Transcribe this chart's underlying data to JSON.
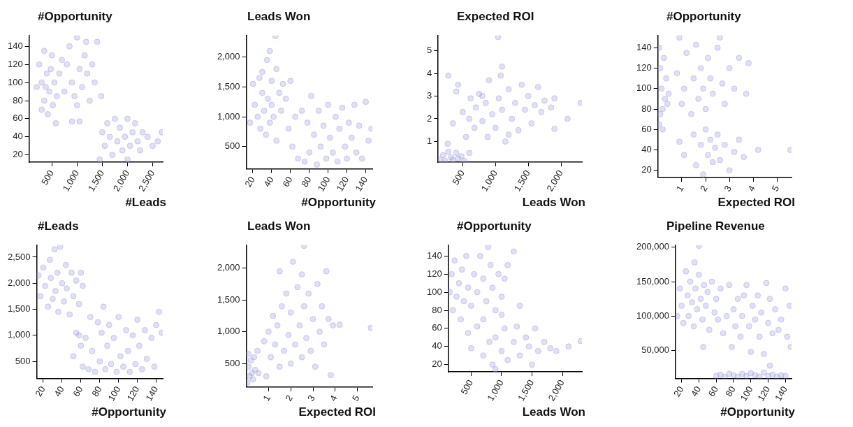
{
  "chart_data": [
    {
      "type": "scatter",
      "ylabel": "#Opportunity",
      "xlabel": "#Leads",
      "color": "#9999dd",
      "marker": "circle",
      "xlim": [
        50,
        2700
      ],
      "ylim": [
        12,
        152
      ],
      "xticks": [
        500,
        {
          "value": 1000,
          "label": "1,000"
        },
        {
          "value": 1500,
          "label": "1,500"
        },
        {
          "value": 2000,
          "label": "2,000"
        },
        {
          "value": 2500,
          "label": "2,500"
        }
      ],
      "yticks": [
        20,
        40,
        60,
        80,
        100,
        120,
        140
      ],
      "x": [
        250,
        300,
        350,
        400,
        450,
        500,
        300,
        420,
        550,
        600,
        350,
        480,
        200,
        380,
        520,
        650,
        700,
        800,
        850,
        900,
        950,
        1000,
        1050,
        1100,
        1150,
        1200,
        1250,
        1300,
        1350,
        900,
        1050,
        750,
        1000,
        1180,
        1400,
        1480,
        1500,
        1550,
        1600,
        1650,
        1700,
        1750,
        1800,
        1850,
        1900,
        1950,
        2000,
        2050,
        2100,
        2150,
        2200,
        2250,
        2300,
        2400,
        2500,
        2600,
        2680,
        1450,
        2000,
        580
      ],
      "values": [
        120,
        100,
        80,
        110,
        90,
        130,
        70,
        65,
        100,
        85,
        135,
        115,
        95,
        95,
        75,
        110,
        125,
        120,
        140,
        100,
        85,
        150,
        115,
        95,
        130,
        110,
        80,
        120,
        100,
        57,
        57,
        90,
        75,
        145,
        145,
        85,
        45,
        30,
        55,
        40,
        20,
        60,
        35,
        50,
        25,
        40,
        60,
        30,
        45,
        55,
        35,
        25,
        45,
        40,
        30,
        35,
        45,
        15,
        15,
        55
      ]
    },
    {
      "type": "scatter",
      "ylabel": "Leads Won",
      "xlabel": "#Opportunity",
      "color": "#9999dd",
      "marker": "circle",
      "xlim": [
        13,
        147
      ],
      "ylim": [
        130,
        2360
      ],
      "xticks": [
        20,
        40,
        60,
        80,
        100,
        120,
        140
      ],
      "yticks": [
        500,
        {
          "value": 1000,
          "label": "1,000"
        },
        {
          "value": 1500,
          "label": "1,500"
        },
        {
          "value": 2000,
          "label": "2,000"
        }
      ],
      "x": [
        17,
        20,
        22,
        25,
        27,
        28,
        30,
        30,
        32,
        34,
        35,
        36,
        38,
        38,
        40,
        40,
        42,
        44,
        45,
        45,
        48,
        50,
        52,
        55,
        58,
        60,
        62,
        65,
        68,
        72,
        75,
        78,
        80,
        82,
        85,
        88,
        90,
        92,
        95,
        98,
        100,
        102,
        105,
        108,
        110,
        112,
        115,
        118,
        120,
        122,
        125,
        128,
        130,
        133,
        136,
        140,
        143,
        146
      ],
      "values": [
        900,
        1550,
        1200,
        1000,
        1650,
        800,
        1400,
        1750,
        1100,
        700,
        1950,
        1300,
        900,
        2100,
        1600,
        1200,
        1000,
        2350,
        1800,
        600,
        1400,
        1100,
        1550,
        1300,
        800,
        1600,
        500,
        1000,
        300,
        1100,
        250,
        900,
        400,
        1350,
        700,
        200,
        1100,
        500,
        850,
        300,
        1200,
        650,
        400,
        1000,
        250,
        800,
        1150,
        500,
        300,
        900,
        650,
        1200,
        400,
        850,
        300,
        1250,
        600,
        800
      ]
    },
    {
      "type": "scatter",
      "ylabel": "Expected ROI",
      "xlabel": "Leads Won",
      "color": "#9999dd",
      "marker": "circle",
      "xlim": [
        125,
        2320
      ],
      "ylim": [
        0.09,
        5.67
      ],
      "xticks": [
        500,
        {
          "value": 1000,
          "label": "1,000"
        },
        {
          "value": 1500,
          "label": "1,500"
        },
        {
          "value": 2000,
          "label": "2,000"
        }
      ],
      "yticks": [
        1,
        2,
        3,
        4,
        5
      ],
      "x": [
        150,
        200,
        230,
        280,
        320,
        350,
        400,
        430,
        480,
        520,
        270,
        600,
        350,
        400,
        430,
        500,
        550,
        600,
        620,
        680,
        700,
        750,
        800,
        850,
        880,
        900,
        950,
        1000,
        1050,
        1080,
        1100,
        1150,
        1200,
        1250,
        1300,
        1350,
        1400,
        1450,
        1500,
        1550,
        1600,
        1650,
        1700,
        1750,
        1850,
        1900,
        1200,
        800,
        280,
        1040,
        1100,
        2300,
        2100,
        1900
      ],
      "values": [
        0.2,
        0.4,
        0.15,
        0.55,
        0.3,
        0.2,
        0.5,
        0.25,
        0.35,
        0.15,
        0.9,
        0.5,
        1.8,
        3.2,
        3.5,
        2.3,
        1.2,
        2.0,
        2.9,
        1.6,
        2.5,
        3.1,
        1.9,
        2.7,
        1.2,
        3.7,
        2.2,
        1.6,
        2.9,
        3.9,
        2.4,
        1.0,
        3.3,
        2.0,
        2.7,
        1.5,
        3.5,
        2.4,
        3.0,
        1.8,
        2.6,
        3.4,
        2.3,
        2.8,
        2.5,
        2.9,
        1.3,
        3.0,
        3.9,
        5.6,
        4.3,
        2.7,
        2.0,
        1.55
      ]
    },
    {
      "type": "scatter",
      "ylabel": "#Opportunity",
      "xlabel": "Expected ROI",
      "color": "#9999dd",
      "marker": "circle",
      "xlim": [
        0,
        5.6
      ],
      "ylim": [
        13,
        152
      ],
      "xticks": [
        1,
        2,
        3,
        4,
        5
      ],
      "yticks": [
        20,
        40,
        60,
        80,
        100,
        120,
        140
      ],
      "x": [
        0.05,
        0.1,
        0.15,
        0.2,
        0.05,
        0.25,
        0.3,
        0.1,
        0.35,
        0.45,
        0.2,
        0.4,
        0.9,
        0.8,
        1.0,
        1.1,
        1.2,
        1.4,
        1.5,
        1.6,
        1.7,
        1.8,
        1.9,
        2.0,
        2.1,
        2.2,
        2.3,
        2.5,
        2.6,
        2.7,
        2.8,
        3.0,
        3.2,
        3.4,
        3.7,
        3.8,
        0.9,
        1.1,
        1.5,
        1.6,
        1.8,
        1.9,
        2.0,
        2.1,
        2.2,
        2.3,
        2.4,
        2.5,
        2.6,
        2.8,
        3.0,
        3.2,
        3.4,
        3.6,
        4.2,
        5.55
      ],
      "values": [
        140,
        120,
        100,
        80,
        65,
        130,
        90,
        75,
        110,
        95,
        60,
        85,
        150,
        115,
        85,
        100,
        135,
        75,
        110,
        143,
        90,
        120,
        100,
        80,
        130,
        110,
        95,
        140,
        150,
        105,
        85,
        120,
        100,
        130,
        95,
        125,
        48,
        35,
        55,
        25,
        45,
        16,
        60,
        35,
        50,
        28,
        42,
        55,
        30,
        45,
        20,
        38,
        50,
        33,
        40,
        40
      ]
    },
    {
      "type": "scatter",
      "ylabel": "#Leads",
      "xlabel": "#Opportunity",
      "color": "#9999dd",
      "marker": "circle",
      "xlim": [
        13,
        147
      ],
      "ylim": [
        175,
        2730
      ],
      "xticks": [
        20,
        40,
        60,
        80,
        100,
        120,
        140
      ],
      "yticks": [
        500,
        {
          "value": 1000,
          "label": "1,000"
        },
        {
          "value": 1500,
          "label": "1,500"
        },
        {
          "value": 2000,
          "label": "2,000"
        },
        {
          "value": 2500,
          "label": "2,500"
        }
      ],
      "x": [
        15,
        17,
        20,
        22,
        25,
        27,
        28,
        30,
        32,
        33,
        35,
        36,
        38,
        40,
        42,
        44,
        45,
        48,
        50,
        52,
        55,
        58,
        60,
        62,
        52,
        55,
        58,
        60,
        62,
        65,
        68,
        70,
        72,
        75,
        78,
        80,
        82,
        84,
        86,
        88,
        90,
        92,
        95,
        98,
        100,
        102,
        105,
        108,
        110,
        112,
        115,
        118,
        120,
        122,
        125,
        128,
        130,
        135,
        138,
        140,
        143,
        146
      ],
      "values": [
        2150,
        1750,
        2300,
        1950,
        1550,
        2450,
        2100,
        1700,
        2650,
        1850,
        2200,
        1450,
        2700,
        2000,
        1650,
        2350,
        1900,
        1400,
        2200,
        1750,
        2050,
        1600,
        2200,
        1950,
        600,
        1050,
        1000,
        800,
        400,
        950,
        350,
        1350,
        700,
        300,
        1250,
        500,
        1050,
        1550,
        350,
        800,
        1200,
        450,
        950,
        300,
        1350,
        600,
        400,
        1100,
        700,
        300,
        1000,
        450,
        1300,
        800,
        350,
        1100,
        550,
        950,
        400,
        1200,
        1450,
        1050
      ]
    },
    {
      "type": "scatter",
      "ylabel": "Leads Won",
      "xlabel": "Expected ROI",
      "color": "#9999dd",
      "marker": "circle",
      "xlim": [
        0,
        5.67
      ],
      "ylim": [
        130,
        2360
      ],
      "xticks": [
        1,
        2,
        3,
        4,
        5
      ],
      "yticks": [
        500,
        {
          "value": 1000,
          "label": "1,000"
        },
        {
          "value": 1500,
          "label": "1,500"
        },
        {
          "value": 2000,
          "label": "2,000"
        }
      ],
      "x": [
        0.05,
        0.1,
        0.15,
        0.2,
        0.25,
        0.3,
        0.35,
        0.4,
        0.5,
        0.55,
        0.1,
        0.9,
        0.8,
        1.0,
        1.1,
        1.2,
        1.3,
        1.4,
        1.5,
        1.5,
        1.6,
        1.7,
        1.8,
        1.9,
        2.0,
        2.0,
        2.1,
        2.2,
        2.3,
        2.4,
        2.5,
        2.5,
        2.6,
        2.7,
        2.8,
        2.9,
        3.0,
        3.1,
        3.2,
        3.3,
        3.4,
        3.5,
        3.6,
        3.7,
        3.9,
        2.6,
        4.2,
        5.6,
        3.8
      ],
      "values": [
        200,
        450,
        300,
        550,
        350,
        250,
        600,
        400,
        700,
        350,
        650,
        300,
        850,
        1000,
        600,
        1250,
        800,
        1100,
        450,
        1950,
        1400,
        700,
        1600,
        950,
        500,
        1300,
        2100,
        800,
        1700,
        1100,
        600,
        1900,
        1400,
        900,
        1600,
        700,
        1200,
        450,
        1750,
        1000,
        1400,
        800,
        1950,
        1200,
        1100,
        2350,
        1110,
        1060,
        320
      ]
    },
    {
      "type": "scatter",
      "ylabel": "#Opportunity",
      "xlabel": "Leads Won",
      "color": "#9999dd",
      "marker": "circle",
      "xlim": [
        125,
        2320
      ],
      "ylim": [
        12,
        152
      ],
      "xticks": [
        500,
        {
          "value": 1000,
          "label": "1,000"
        },
        {
          "value": 1500,
          "label": "1,500"
        },
        {
          "value": 2000,
          "label": "2,000"
        }
      ],
      "yticks": [
        20,
        40,
        60,
        80,
        100,
        120,
        140
      ],
      "x": [
        150,
        180,
        200,
        230,
        260,
        300,
        330,
        350,
        380,
        420,
        450,
        500,
        550,
        600,
        650,
        700,
        750,
        780,
        820,
        850,
        900,
        950,
        1000,
        1050,
        1100,
        1200,
        1000,
        700,
        450,
        500,
        600,
        700,
        800,
        850,
        900,
        1000,
        1050,
        1100,
        1200,
        1250,
        1300,
        1400,
        1450,
        1500,
        1550,
        1600,
        1700,
        1800,
        1900,
        2100,
        2300,
        1300,
        900
      ],
      "values": [
        100,
        120,
        80,
        135,
        95,
        110,
        70,
        125,
        90,
        140,
        105,
        85,
        120,
        100,
        140,
        115,
        90,
        150,
        130,
        105,
        80,
        120,
        95,
        115,
        130,
        145,
        75,
        70,
        55,
        38,
        62,
        30,
        45,
        20,
        50,
        35,
        60,
        25,
        45,
        62,
        30,
        50,
        40,
        20,
        60,
        35,
        45,
        38,
        35,
        40,
        46,
        85,
        15
      ]
    },
    {
      "type": "scatter",
      "ylabel": "Pipeline Revenue",
      "xlabel": "#Opportunity",
      "color": "#9999dd",
      "marker": "circle",
      "xlim": [
        13,
        147
      ],
      "ylim": [
        9500,
        203000
      ],
      "xticks": [
        20,
        40,
        60,
        80,
        100,
        120,
        140
      ],
      "yticks": [
        {
          "value": 50000,
          "label": "50,000"
        },
        {
          "value": 100000,
          "label": "100,000"
        },
        {
          "value": 150000,
          "label": "150,000"
        },
        {
          "value": 200000,
          "label": "200,000"
        }
      ],
      "x": [
        15,
        18,
        20,
        22,
        25,
        27,
        28,
        30,
        32,
        34,
        35,
        36,
        38,
        40,
        40,
        42,
        44,
        46,
        48,
        50,
        52,
        55,
        58,
        60,
        45,
        62,
        65,
        68,
        72,
        75,
        78,
        80,
        82,
        85,
        88,
        90,
        92,
        95,
        98,
        100,
        102,
        105,
        108,
        110,
        112,
        115,
        118,
        120,
        122,
        125,
        128,
        132,
        135,
        140,
        142,
        145,
        146,
        122,
        60,
        65,
        70,
        75,
        80,
        85,
        90,
        95,
        100,
        105,
        110,
        115,
        120,
        125,
        130,
        135,
        140
      ],
      "values": [
        100000,
        140000,
        115000,
        90000,
        165000,
        130000,
        100000,
        150000,
        120000,
        85000,
        178000,
        140000,
        110000,
        202000,
        160000,
        125000,
        95000,
        145000,
        115000,
        135000,
        80000,
        150000,
        105000,
        125000,
        55000,
        95000,
        140000,
        75000,
        100000,
        145000,
        55000,
        110000,
        85000,
        125000,
        70000,
        100000,
        130000,
        145000,
        85000,
        48000,
        115000,
        95000,
        130000,
        70000,
        105000,
        45000,
        148000,
        90000,
        125000,
        75000,
        110000,
        80000,
        95000,
        140000,
        70000,
        115000,
        55000,
        28000,
        13000,
        15000,
        12000,
        16000,
        14000,
        12000,
        16000,
        13000,
        17000,
        14000,
        12000,
        18000,
        13000,
        15000,
        12000,
        14000,
        13000
      ]
    }
  ]
}
